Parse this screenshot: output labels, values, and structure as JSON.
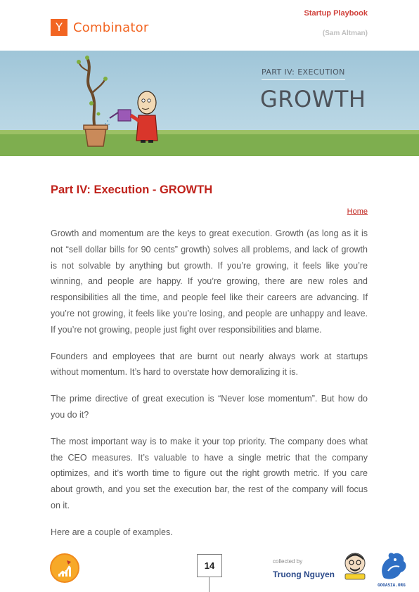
{
  "header": {
    "logo_letter": "Y",
    "logo_text": "Combinator",
    "doc_title": "Startup Playbook",
    "author": "(Sam Altman)"
  },
  "banner": {
    "part_label": "PART IV: EXECUTION",
    "big_title": "GROWTH"
  },
  "article": {
    "title": "Part IV: Execution - GROWTH",
    "home_link": "Home",
    "paragraphs": [
      "Growth and momentum are the keys to great execution. Growth (as long as it is not “sell dollar bills for 90 cents” growth) solves all problems, and lack of growth is not solvable by anything but growth. If you’re growing, it feels like you’re winning, and people are happy. If you’re growing, there are new roles and responsibilities all the time, and people feel like their careers are advancing. If you’re not growing, it feels like you’re losing, and people are unhappy and leave. If you’re not growing, people just fight over responsibilities and blame.",
      "Founders and employees that are burnt out nearly always work at startups without momentum. It’s hard to overstate how demoralizing it is.",
      "The prime directive of great execution is “Never lose momentum”. But how do you do it?",
      "The most important way is to make it your top priority. The company does what the CEO measures. It’s valuable to have a single metric that the company optimizes, and it’s worth time to figure out the right growth metric. If you care about growth, and you set the execution bar, the rest of the company will focus on it.",
      "Here are a couple of examples."
    ]
  },
  "footer": {
    "page_number": "14",
    "collected_by": "collected by",
    "collector_name": "Truong Nguyen",
    "badge_text": "GOOASIA.ORG"
  },
  "colors": {
    "yc_orange": "#f26522",
    "title_red": "#c0221b",
    "body_text": "#5a5a5a"
  }
}
